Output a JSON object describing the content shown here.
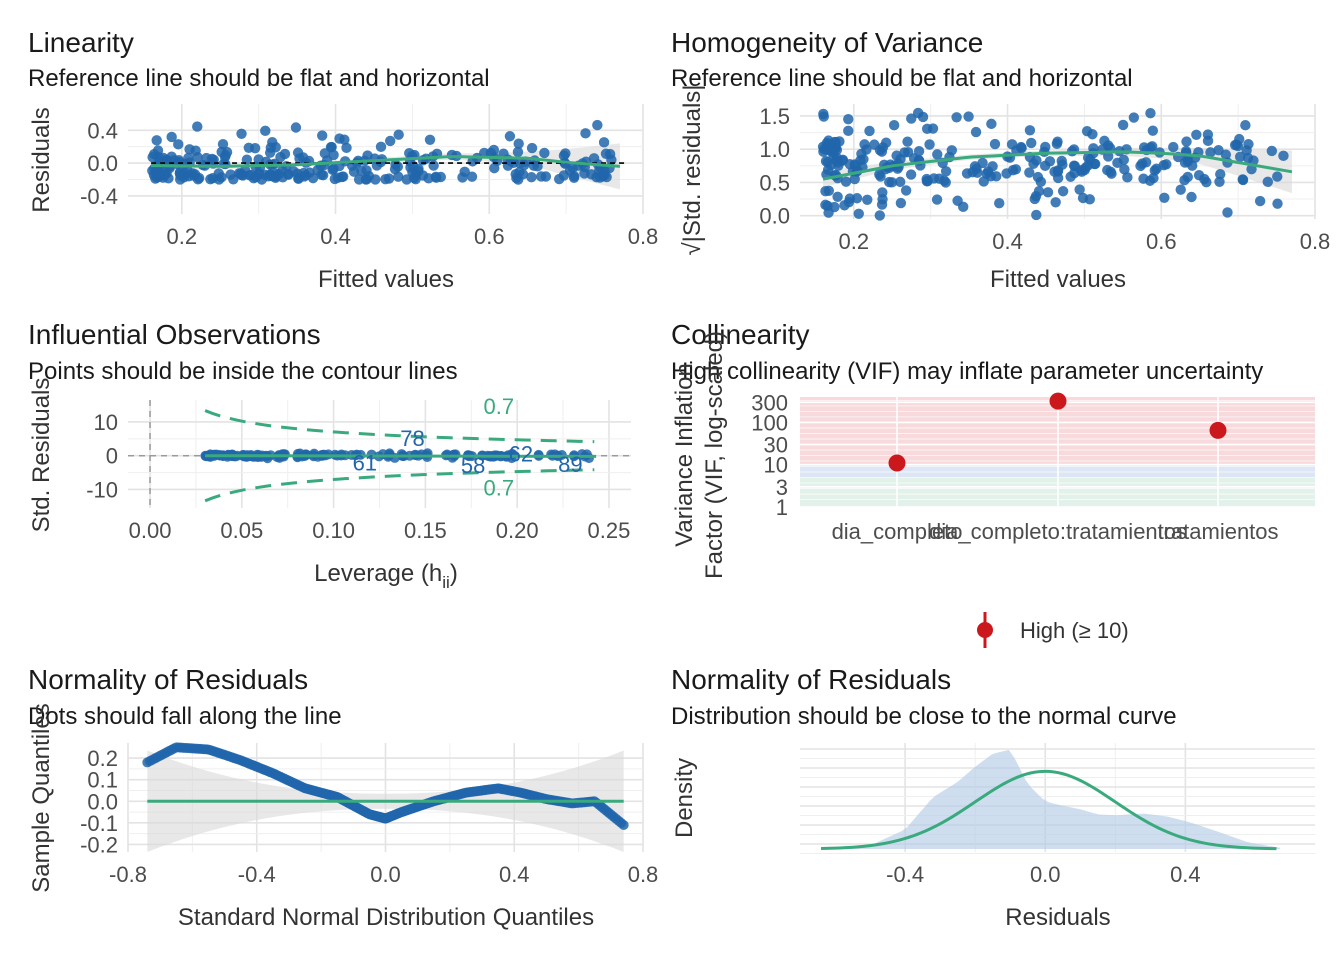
{
  "colors": {
    "point": "#2166ac",
    "line": "#3aaa7e",
    "band": "#d9d9d9",
    "vif_high_bg": "#f5cacf",
    "vif_mod_bg": "#cfdcef",
    "vif_low_bg": "#d6ece1",
    "vif_point": "#cb181d",
    "density_fill": "#b3cce6"
  },
  "chart_data": [
    {
      "id": "linearity",
      "type": "scatter",
      "title": "Linearity",
      "subtitle": "Reference line should be flat and horizontal",
      "xlabel": "Fitted values",
      "ylabel": "Residuals",
      "xlim": [
        0.13,
        0.8
      ],
      "ylim": [
        -0.62,
        0.72
      ],
      "x_ticks": [
        0.2,
        0.4,
        0.6,
        0.8
      ],
      "x_tick_labels": [
        "0.2",
        "0.4",
        "0.6",
        "0.8"
      ],
      "y_ticks": [
        -0.4,
        0.0,
        0.4
      ],
      "y_tick_labels": [
        "-0.4",
        "0.0",
        "0.4"
      ],
      "reference_line": 0,
      "smooth": {
        "x": [
          0.16,
          0.25,
          0.35,
          0.45,
          0.55,
          0.6,
          0.65,
          0.7,
          0.77
        ],
        "y": [
          -0.03,
          -0.04,
          -0.02,
          0.03,
          0.08,
          0.07,
          0.06,
          0.01,
          -0.04
        ],
        "band_half_width": [
          0.06,
          0.03,
          0.02,
          0.03,
          0.04,
          0.05,
          0.08,
          0.16,
          0.28
        ]
      }
    },
    {
      "id": "homogeneity",
      "type": "scatter",
      "title": "Homogeneity of Variance",
      "subtitle": "Reference line should be flat and horizontal",
      "xlabel": "Fitted values",
      "ylabel": "√|Std. residuals|",
      "xlim": [
        0.13,
        0.8
      ],
      "ylim": [
        -0.05,
        1.68
      ],
      "x_ticks": [
        0.2,
        0.4,
        0.6,
        0.8
      ],
      "x_tick_labels": [
        "0.2",
        "0.4",
        "0.6",
        "0.8"
      ],
      "y_ticks": [
        0.0,
        0.5,
        1.0,
        1.5
      ],
      "y_tick_labels": [
        "0.0",
        "0.5",
        "1.0",
        "1.5"
      ],
      "smooth": {
        "x": [
          0.16,
          0.25,
          0.35,
          0.45,
          0.55,
          0.6,
          0.65,
          0.7,
          0.77
        ],
        "y": [
          0.55,
          0.75,
          0.88,
          0.94,
          0.96,
          0.94,
          0.9,
          0.8,
          0.66
        ],
        "band_half_width": [
          0.12,
          0.06,
          0.04,
          0.04,
          0.06,
          0.08,
          0.12,
          0.2,
          0.32
        ]
      }
    },
    {
      "id": "influential",
      "type": "scatter",
      "title": "Influential Observations",
      "subtitle": "Points should be inside the contour lines",
      "xlabel": "Leverage (hii)",
      "ylabel": "Std. Residuals",
      "xlim": [
        -0.012,
        0.262
      ],
      "ylim": [
        -15.5,
        16.5
      ],
      "x_ticks": [
        0.0,
        0.05,
        0.1,
        0.15,
        0.2,
        0.25
      ],
      "x_tick_labels": [
        "0.00",
        "0.05",
        "0.10",
        "0.15",
        "0.20",
        "0.25"
      ],
      "y_ticks": [
        -10,
        0,
        10
      ],
      "y_tick_labels": [
        "-10",
        "0",
        "10"
      ],
      "contour_label": "0.7",
      "labeled_points": [
        {
          "label": "78",
          "x": 0.143,
          "y": 5.2
        },
        {
          "label": "61",
          "x": 0.117,
          "y": -2.0
        },
        {
          "label": "58",
          "x": 0.176,
          "y": -2.8
        },
        {
          "label": "62",
          "x": 0.202,
          "y": 0.6
        },
        {
          "label": "89",
          "x": 0.229,
          "y": -2.5
        }
      ]
    },
    {
      "id": "collinearity",
      "type": "scatter",
      "title": "Collinearity",
      "subtitle": "High collinearity (VIF) may inflate parameter uncertainty",
      "ylabel_line1": "Variance Inflation",
      "ylabel_line2": "Factor (VIF, log-scaled)",
      "y_scale": "log10",
      "ylim": [
        1,
        400
      ],
      "y_ticks": [
        1,
        3,
        10,
        30,
        100,
        300
      ],
      "y_tick_labels": [
        "1",
        "3",
        "10",
        "30",
        "100",
        "300"
      ],
      "categories": [
        "dia_completo",
        "dia_completo:tratamientos",
        "tratamientos"
      ],
      "values": [
        11,
        320,
        65
      ],
      "legend_label": "High (≥ 10)",
      "legend_position": "bottom"
    },
    {
      "id": "qq",
      "type": "scatter",
      "title": "Normality of Residuals",
      "subtitle": "Dots should fall along the line",
      "xlabel": "Standard Normal Distribution Quantiles",
      "ylabel": "Sample Quantiles",
      "xlim": [
        -0.8,
        0.8
      ],
      "ylim": [
        -0.235,
        0.27
      ],
      "x_ticks": [
        -0.8,
        -0.4,
        0.0,
        0.4,
        0.8
      ],
      "x_tick_labels": [
        "-0.8",
        "-0.4",
        "0.0",
        "0.4",
        "0.8"
      ],
      "y_ticks": [
        -0.2,
        -0.1,
        0.0,
        0.1,
        0.2
      ],
      "y_tick_labels": [
        "-0.2",
        "-0.1",
        "0.0",
        "0.1",
        "0.2"
      ],
      "reference_line": 0
    },
    {
      "id": "density",
      "type": "area",
      "title": "Normality of Residuals",
      "subtitle": "Distribution should be close to the normal curve",
      "xlabel": "Residuals",
      "ylabel": "Density",
      "xlim": [
        -0.7,
        0.77
      ],
      "x_ticks": [
        -0.4,
        0.0,
        0.4
      ],
      "x_tick_labels": [
        "-0.4",
        "0.0",
        "0.4"
      ],
      "empirical": {
        "x": [
          -0.62,
          -0.5,
          -0.4,
          -0.32,
          -0.25,
          -0.2,
          -0.15,
          -0.1,
          -0.05,
          0.0,
          0.05,
          0.1,
          0.15,
          0.2,
          0.28,
          0.35,
          0.42,
          0.5,
          0.58,
          0.67
        ],
        "y": [
          0.02,
          0.08,
          0.45,
          1.2,
          1.55,
          1.9,
          2.2,
          2.3,
          1.5,
          1.1,
          1.0,
          0.92,
          0.8,
          0.78,
          0.82,
          0.75,
          0.6,
          0.38,
          0.15,
          0.03
        ]
      },
      "normal": {
        "mean": 0.0,
        "sd": 0.2
      }
    }
  ]
}
